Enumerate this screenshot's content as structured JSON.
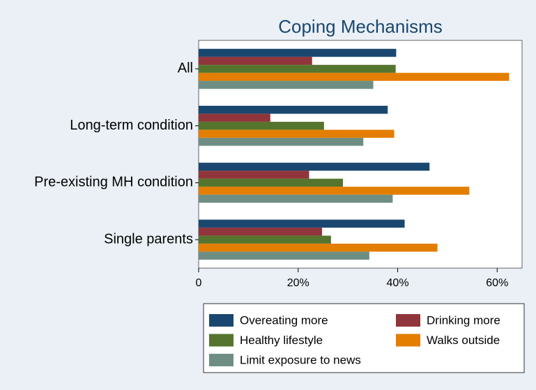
{
  "chart_data": {
    "type": "barh",
    "title": "Coping Mechanisms",
    "categories": [
      "All",
      "Long-term condition",
      "Pre-existing MH condition",
      "Single parents"
    ],
    "series": [
      {
        "name": "Overeating more",
        "color": "#1a476f",
        "values": [
          39.7,
          38.0,
          46.4,
          41.4
        ]
      },
      {
        "name": "Drinking more",
        "color": "#90353b",
        "values": [
          22.8,
          14.4,
          22.2,
          24.8
        ]
      },
      {
        "name": "Healthy lifestyle",
        "color": "#55752f",
        "values": [
          39.6,
          25.2,
          29.0,
          26.6
        ]
      },
      {
        "name": "Walks outside",
        "color": "#e37e00",
        "values": [
          62.4,
          39.3,
          54.4,
          48.0
        ]
      },
      {
        "name": "Limit exposure to news",
        "color": "#6e8e84",
        "values": [
          35.1,
          33.1,
          39.0,
          34.3
        ]
      }
    ],
    "xlim": [
      0,
      65
    ],
    "xticks": [
      0,
      {
        "value": 20,
        "label": "20%"
      },
      {
        "value": 40,
        "label": "40%"
      },
      {
        "value": 60,
        "label": "60%"
      }
    ],
    "legend": "bottom"
  }
}
